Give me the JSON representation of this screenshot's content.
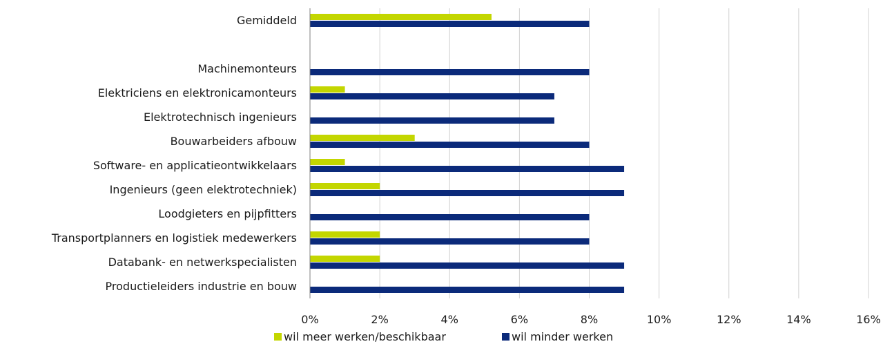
{
  "chart_data": {
    "type": "bar",
    "orientation": "horizontal",
    "categories": [
      "Gemiddeld",
      "",
      "Machinemonteurs",
      "Elektriciens en elektronicamonteurs",
      "Elektrotechnisch ingenieurs",
      "Bouwarbeiders afbouw",
      "Software- en applicatieontwikkelaars",
      "Ingenieurs (geen elektrotechniek)",
      "Loodgieters en pijpfitters",
      "Transportplanners en logistiek medewerkers",
      "Databank- en netwerkspecialisten",
      "Productieleiders industrie en bouw"
    ],
    "series": [
      {
        "name": "wil meer werken/beschikbaar",
        "color": "#c3d600",
        "values": [
          5.2,
          null,
          0,
          1,
          0,
          3,
          1,
          2,
          0,
          2,
          2,
          0
        ]
      },
      {
        "name": "wil minder werken",
        "color": "#0b2a7a",
        "values": [
          8,
          null,
          8,
          7,
          7,
          8,
          9,
          9,
          8,
          8,
          9,
          9
        ]
      }
    ],
    "xlim": [
      0,
      16
    ],
    "xticks": [
      0,
      2,
      4,
      6,
      8,
      10,
      12,
      14,
      16
    ],
    "xtick_labels": [
      "0%",
      "2%",
      "4%",
      "6%",
      "8%",
      "10%",
      "12%",
      "14%",
      "16%"
    ],
    "grid": "vertical",
    "legend_position": "bottom"
  }
}
